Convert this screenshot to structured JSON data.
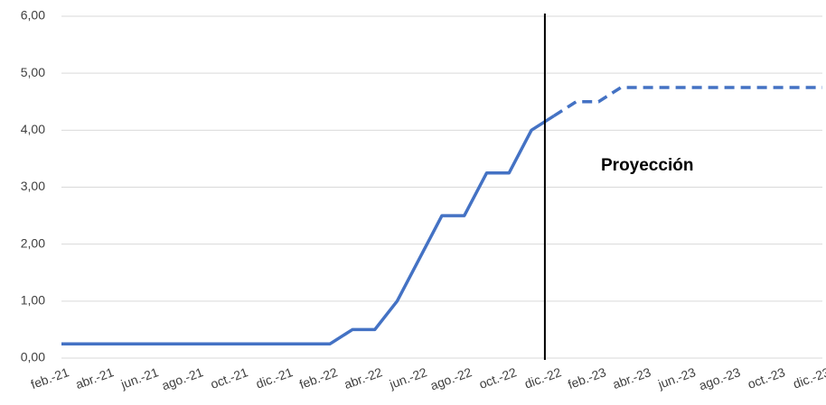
{
  "chart_data": {
    "type": "line",
    "categories": [
      "feb.-21",
      null,
      "abr.-21",
      null,
      "jun.-21",
      null,
      "ago.-21",
      null,
      "oct.-21",
      null,
      "dic.-21",
      null,
      "feb.-22",
      null,
      "abr.-22",
      null,
      "jun.-22",
      null,
      "ago.-22",
      null,
      "oct.-22",
      null,
      "dic.-22",
      null,
      "feb.-23",
      null,
      "abr.-23",
      null,
      "jun.-23",
      null,
      "ago.-23",
      null,
      "oct.-23",
      null,
      "dic.-23"
    ],
    "series": [
      {
        "color": "#4472c4",
        "dash": false,
        "values": [
          0.25,
          0.25,
          0.25,
          0.25,
          0.25,
          0.25,
          0.25,
          0.25,
          0.25,
          0.25,
          0.25,
          0.25,
          0.25,
          0.5,
          0.5,
          1.0,
          1.75,
          2.5,
          2.5,
          3.25,
          3.25,
          4.0,
          4.25,
          null,
          null,
          null,
          null,
          null,
          null,
          null,
          null,
          null,
          null,
          null,
          null
        ]
      },
      {
        "color": "#4472c4",
        "dash": true,
        "values": [
          null,
          null,
          null,
          null,
          null,
          null,
          null,
          null,
          null,
          null,
          null,
          null,
          null,
          null,
          null,
          null,
          null,
          null,
          null,
          null,
          null,
          null,
          4.25,
          4.5,
          4.5,
          4.75,
          4.75,
          4.75,
          4.75,
          4.75,
          4.75,
          4.75,
          4.75,
          4.75,
          4.75
        ]
      }
    ],
    "ylim": [
      0,
      6
    ],
    "yticks": [
      {
        "value": 0,
        "label": "0,00"
      },
      {
        "value": 1,
        "label": "1,00"
      },
      {
        "value": 2,
        "label": "2,00"
      },
      {
        "value": 3,
        "label": "3,00"
      },
      {
        "value": 4,
        "label": "4,00"
      },
      {
        "value": 5,
        "label": "5,00"
      },
      {
        "value": 6,
        "label": "6,00"
      }
    ],
    "grid": true,
    "annotation": "Proyección"
  }
}
